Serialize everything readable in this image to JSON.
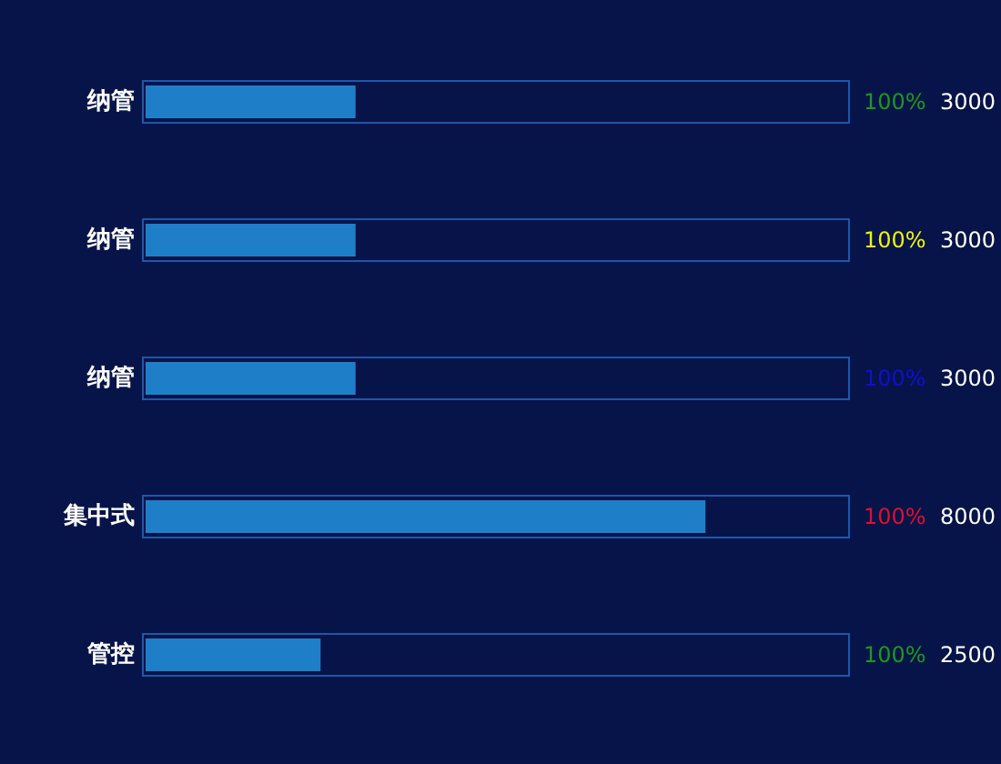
{
  "chart_data": {
    "type": "bar",
    "orientation": "horizontal",
    "categories": [
      "纳管",
      "纳管",
      "纳管",
      "集中式",
      "管控"
    ],
    "values": [
      3000,
      3000,
      3000,
      8000,
      2500
    ],
    "color": "#1e7fc8",
    "xlim": [
      0,
      10000
    ],
    "data_labels": true,
    "tick_labels": "y",
    "annotations": [
      "100%",
      "100%",
      "100%",
      "100%",
      "100%"
    ]
  }
}
